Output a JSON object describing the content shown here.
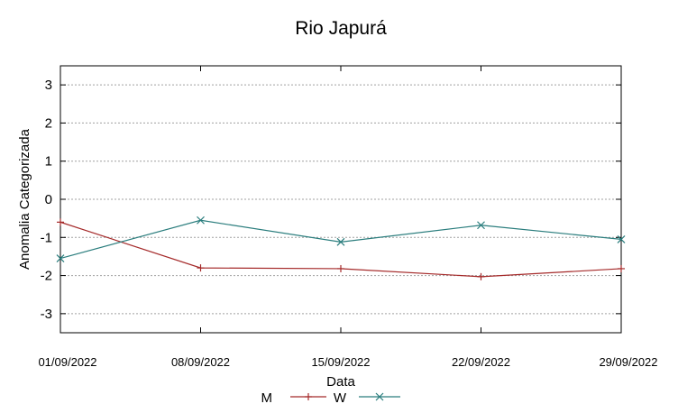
{
  "chart_data": {
    "type": "line",
    "title": "Rio Japurá",
    "xlabel": "Data",
    "ylabel": "Anomalia Categorizada",
    "categories": [
      "01/09/2022",
      "08/09/2022",
      "15/09/2022",
      "22/09/2022",
      "29/09/2022"
    ],
    "ylim": [
      -3.5,
      3.5
    ],
    "yticks": [
      3,
      2,
      1,
      0,
      -1,
      -2,
      -3
    ],
    "ytick_labels": [
      "3",
      "2",
      "1",
      "0",
      "-1",
      "-2",
      "-3"
    ],
    "grid": true,
    "legend_position": "bottom-center",
    "series": [
      {
        "name": "M",
        "color": "#a52a2a",
        "marker": "plus",
        "values": [
          -0.6,
          -1.8,
          -1.82,
          -2.03,
          -1.82
        ]
      },
      {
        "name": "W",
        "color": "#2a7d7d",
        "marker": "cross",
        "values": [
          -1.55,
          -0.55,
          -1.12,
          -0.68,
          -1.05
        ]
      }
    ]
  }
}
